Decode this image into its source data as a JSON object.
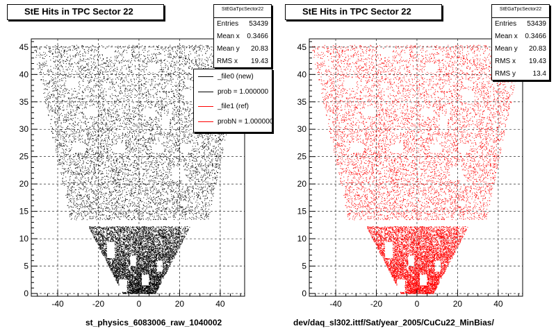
{
  "chart_data": [
    {
      "type": "scatter",
      "title": "StE Hits in TPC Sector 22",
      "xlabel": "st_physics_6083006_raw_1040002",
      "ylabel": "",
      "xlim": [
        -53,
        52
      ],
      "ylim": [
        -0.5,
        46.5
      ],
      "x_ticks": [
        -40,
        -20,
        0,
        20,
        40
      ],
      "y_ticks": [
        0,
        5,
        10,
        15,
        20,
        25,
        30,
        35,
        40,
        45
      ],
      "grid": true,
      "color": "#000000",
      "stats": {
        "name": "StEGaTpcSector22",
        "rows": [
          {
            "label": "Entries",
            "value": "53439"
          },
          {
            "label": "Mean x",
            "value": "0.3466"
          },
          {
            "label": "Mean y",
            "value": "20.83"
          },
          {
            "label": "RMS x",
            "value": "19.43"
          }
        ]
      },
      "legend": [
        {
          "label": "_file0 (new)",
          "color": "#000000"
        },
        {
          "label": "prob = 1.000000",
          "color": "#000000"
        },
        {
          "label": "_file1 (ref)",
          "color": "#ff0000"
        },
        {
          "label": "probN = 1.000000",
          "color": "#ff0000"
        }
      ],
      "legend_position": "top-right"
    },
    {
      "type": "scatter",
      "title": "StE Hits in TPC Sector 22",
      "xlabel": "dev/daq_sl302.ittf/Sat/year_2005/CuCu22_MinBias/",
      "ylabel": "",
      "xlim": [
        -53,
        52
      ],
      "ylim": [
        -0.5,
        46.5
      ],
      "x_ticks": [
        -40,
        -20,
        0,
        20,
        40
      ],
      "y_ticks": [
        0,
        5,
        10,
        15,
        20,
        25,
        30,
        35,
        40,
        45
      ],
      "grid": true,
      "color": "#ff0000",
      "stats": {
        "name": "StEGaTpcSector22",
        "rows": [
          {
            "label": "Entries",
            "value": "53439"
          },
          {
            "label": "Mean x",
            "value": "0.3466"
          },
          {
            "label": "Mean y",
            "value": "20.83"
          },
          {
            "label": "RMS x",
            "value": "19.43"
          },
          {
            "label": "RMS y",
            "value": "13.4"
          }
        ]
      }
    }
  ]
}
